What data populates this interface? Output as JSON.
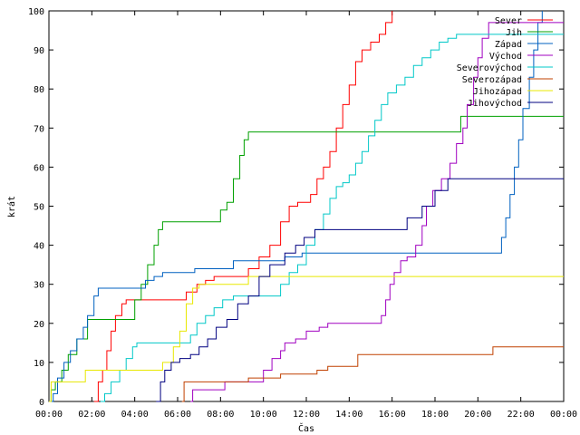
{
  "chart_data": {
    "type": "line",
    "title": "",
    "xlabel": "Čas",
    "ylabel": "krát",
    "x_unit": "hours",
    "xlim": [
      0,
      24
    ],
    "ylim": [
      0,
      100
    ],
    "x_tick_labels": [
      "00:00",
      "02:00",
      "04:00",
      "06:00",
      "08:00",
      "10:00",
      "12:00",
      "14:00",
      "16:00",
      "18:00",
      "20:00",
      "22:00",
      "00:00"
    ],
    "y_ticks": [
      0,
      10,
      20,
      30,
      40,
      50,
      60,
      70,
      80,
      90,
      100
    ],
    "grid": false,
    "legend_position": "top-right",
    "series": [
      {
        "name": "Sever",
        "color": "#ff0000",
        "points": [
          [
            2.1,
            0
          ],
          [
            2.3,
            5
          ],
          [
            2.5,
            8
          ],
          [
            2.7,
            13
          ],
          [
            2.9,
            18
          ],
          [
            3.1,
            22
          ],
          [
            3.4,
            25
          ],
          [
            3.6,
            26
          ],
          [
            6.0,
            26
          ],
          [
            6.4,
            28
          ],
          [
            6.9,
            30
          ],
          [
            7.3,
            31
          ],
          [
            7.7,
            32
          ],
          [
            8.4,
            32
          ],
          [
            9.3,
            34
          ],
          [
            9.8,
            37
          ],
          [
            10.3,
            40
          ],
          [
            10.8,
            46
          ],
          [
            11.2,
            50
          ],
          [
            11.6,
            51
          ],
          [
            12.2,
            53
          ],
          [
            12.5,
            57
          ],
          [
            12.8,
            60
          ],
          [
            13.1,
            64
          ],
          [
            13.4,
            70
          ],
          [
            13.7,
            76
          ],
          [
            14.0,
            81
          ],
          [
            14.3,
            87
          ],
          [
            14.6,
            90
          ],
          [
            15.0,
            92
          ],
          [
            15.4,
            94
          ],
          [
            15.7,
            97
          ],
          [
            16.0,
            100
          ]
        ]
      },
      {
        "name": "Jih",
        "color": "#00a000",
        "points": [
          [
            0,
            0
          ],
          [
            0.1,
            3
          ],
          [
            0.3,
            5
          ],
          [
            0.6,
            8
          ],
          [
            0.9,
            12
          ],
          [
            1.3,
            16
          ],
          [
            1.8,
            21
          ],
          [
            3.7,
            21
          ],
          [
            4.0,
            26
          ],
          [
            4.3,
            30
          ],
          [
            4.6,
            35
          ],
          [
            4.9,
            40
          ],
          [
            5.1,
            44
          ],
          [
            5.3,
            46
          ],
          [
            7.8,
            46
          ],
          [
            8.0,
            49
          ],
          [
            8.3,
            51
          ],
          [
            8.6,
            57
          ],
          [
            8.9,
            63
          ],
          [
            9.1,
            67
          ],
          [
            9.3,
            69
          ],
          [
            19.0,
            69
          ],
          [
            19.2,
            73
          ],
          [
            24,
            73
          ]
        ]
      },
      {
        "name": "Západ",
        "color": "#0060c0",
        "points": [
          [
            0,
            0
          ],
          [
            0.2,
            2
          ],
          [
            0.4,
            6
          ],
          [
            0.7,
            10
          ],
          [
            1.0,
            13
          ],
          [
            1.3,
            16
          ],
          [
            1.6,
            19
          ],
          [
            1.8,
            22
          ],
          [
            2.1,
            27
          ],
          [
            2.3,
            29
          ],
          [
            4.2,
            29
          ],
          [
            4.5,
            31
          ],
          [
            4.9,
            32
          ],
          [
            5.3,
            33
          ],
          [
            6.3,
            33
          ],
          [
            6.8,
            34
          ],
          [
            8.3,
            34
          ],
          [
            8.6,
            36
          ],
          [
            10.5,
            36
          ],
          [
            11.0,
            37
          ],
          [
            11.8,
            38
          ],
          [
            20.9,
            38
          ],
          [
            21.1,
            42
          ],
          [
            21.3,
            47
          ],
          [
            21.5,
            53
          ],
          [
            21.7,
            60
          ],
          [
            21.9,
            67
          ],
          [
            22.1,
            75
          ],
          [
            22.4,
            83
          ],
          [
            22.6,
            90
          ],
          [
            22.8,
            97
          ],
          [
            23.0,
            100
          ]
        ]
      },
      {
        "name": "Východ",
        "color": "#a000c0",
        "points": [
          [
            6.6,
            0
          ],
          [
            6.7,
            3
          ],
          [
            8.0,
            3
          ],
          [
            8.2,
            5
          ],
          [
            9.8,
            5
          ],
          [
            10.0,
            8
          ],
          [
            10.4,
            11
          ],
          [
            10.8,
            13
          ],
          [
            11.0,
            15
          ],
          [
            11.5,
            16
          ],
          [
            12.0,
            18
          ],
          [
            12.6,
            19
          ],
          [
            13.0,
            20
          ],
          [
            15.3,
            20
          ],
          [
            15.5,
            22
          ],
          [
            15.7,
            26
          ],
          [
            15.9,
            30
          ],
          [
            16.1,
            33
          ],
          [
            16.4,
            36
          ],
          [
            16.7,
            37
          ],
          [
            17.1,
            40
          ],
          [
            17.4,
            45
          ],
          [
            17.6,
            50
          ],
          [
            17.9,
            54
          ],
          [
            18.3,
            57
          ],
          [
            18.7,
            61
          ],
          [
            19.0,
            66
          ],
          [
            19.3,
            70
          ],
          [
            19.5,
            76
          ],
          [
            19.8,
            83
          ],
          [
            20.0,
            88
          ],
          [
            20.2,
            93
          ],
          [
            20.5,
            97
          ],
          [
            24,
            97
          ]
        ]
      },
      {
        "name": "Severovýchod",
        "color": "#00c8c8",
        "points": [
          [
            2.4,
            0
          ],
          [
            2.6,
            2
          ],
          [
            2.9,
            5
          ],
          [
            3.3,
            8
          ],
          [
            3.6,
            11
          ],
          [
            3.9,
            14
          ],
          [
            4.1,
            15
          ],
          [
            6.3,
            15
          ],
          [
            6.6,
            17
          ],
          [
            6.9,
            20
          ],
          [
            7.3,
            22
          ],
          [
            7.7,
            24
          ],
          [
            8.1,
            26
          ],
          [
            8.6,
            27
          ],
          [
            10.5,
            27
          ],
          [
            10.8,
            30
          ],
          [
            11.2,
            33
          ],
          [
            11.6,
            35
          ],
          [
            12.0,
            40
          ],
          [
            12.4,
            44
          ],
          [
            12.8,
            48
          ],
          [
            13.1,
            52
          ],
          [
            13.4,
            55
          ],
          [
            13.7,
            56
          ],
          [
            14.0,
            58
          ],
          [
            14.3,
            61
          ],
          [
            14.6,
            64
          ],
          [
            14.9,
            68
          ],
          [
            15.2,
            72
          ],
          [
            15.5,
            76
          ],
          [
            15.8,
            79
          ],
          [
            16.2,
            81
          ],
          [
            16.6,
            83
          ],
          [
            17.0,
            86
          ],
          [
            17.4,
            88
          ],
          [
            17.8,
            90
          ],
          [
            18.2,
            92
          ],
          [
            18.6,
            93
          ],
          [
            19.0,
            94
          ],
          [
            24,
            94
          ]
        ]
      },
      {
        "name": "Severozápad",
        "color": "#c04000",
        "points": [
          [
            6.2,
            0
          ],
          [
            6.3,
            5
          ],
          [
            9.0,
            5
          ],
          [
            9.3,
            6
          ],
          [
            10.5,
            6
          ],
          [
            10.8,
            7
          ],
          [
            12.0,
            7
          ],
          [
            12.5,
            8
          ],
          [
            13.0,
            9
          ],
          [
            14.2,
            9
          ],
          [
            14.4,
            12
          ],
          [
            20.5,
            12
          ],
          [
            20.7,
            14
          ],
          [
            24,
            14
          ]
        ]
      },
      {
        "name": "Jihozápad",
        "color": "#e8e800",
        "points": [
          [
            0,
            0
          ],
          [
            0.1,
            5
          ],
          [
            1.5,
            5
          ],
          [
            1.7,
            8
          ],
          [
            5.0,
            8
          ],
          [
            5.3,
            10
          ],
          [
            5.8,
            14
          ],
          [
            6.1,
            18
          ],
          [
            6.4,
            25
          ],
          [
            6.7,
            29
          ],
          [
            7.0,
            30
          ],
          [
            8.8,
            30
          ],
          [
            9.3,
            32
          ],
          [
            24,
            32
          ]
        ]
      },
      {
        "name": "Jihovýchod",
        "color": "#000080",
        "points": [
          [
            5.0,
            0
          ],
          [
            5.2,
            5
          ],
          [
            5.4,
            8
          ],
          [
            5.7,
            10
          ],
          [
            6.1,
            11
          ],
          [
            6.6,
            12
          ],
          [
            7.0,
            14
          ],
          [
            7.4,
            16
          ],
          [
            7.8,
            19
          ],
          [
            8.3,
            21
          ],
          [
            8.8,
            25
          ],
          [
            9.3,
            27
          ],
          [
            9.8,
            32
          ],
          [
            10.3,
            35
          ],
          [
            11.0,
            38
          ],
          [
            11.5,
            40
          ],
          [
            11.9,
            42
          ],
          [
            12.4,
            44
          ],
          [
            16.2,
            44
          ],
          [
            16.7,
            47
          ],
          [
            17.4,
            50
          ],
          [
            18.0,
            54
          ],
          [
            18.6,
            57
          ],
          [
            24,
            57
          ]
        ]
      }
    ]
  }
}
